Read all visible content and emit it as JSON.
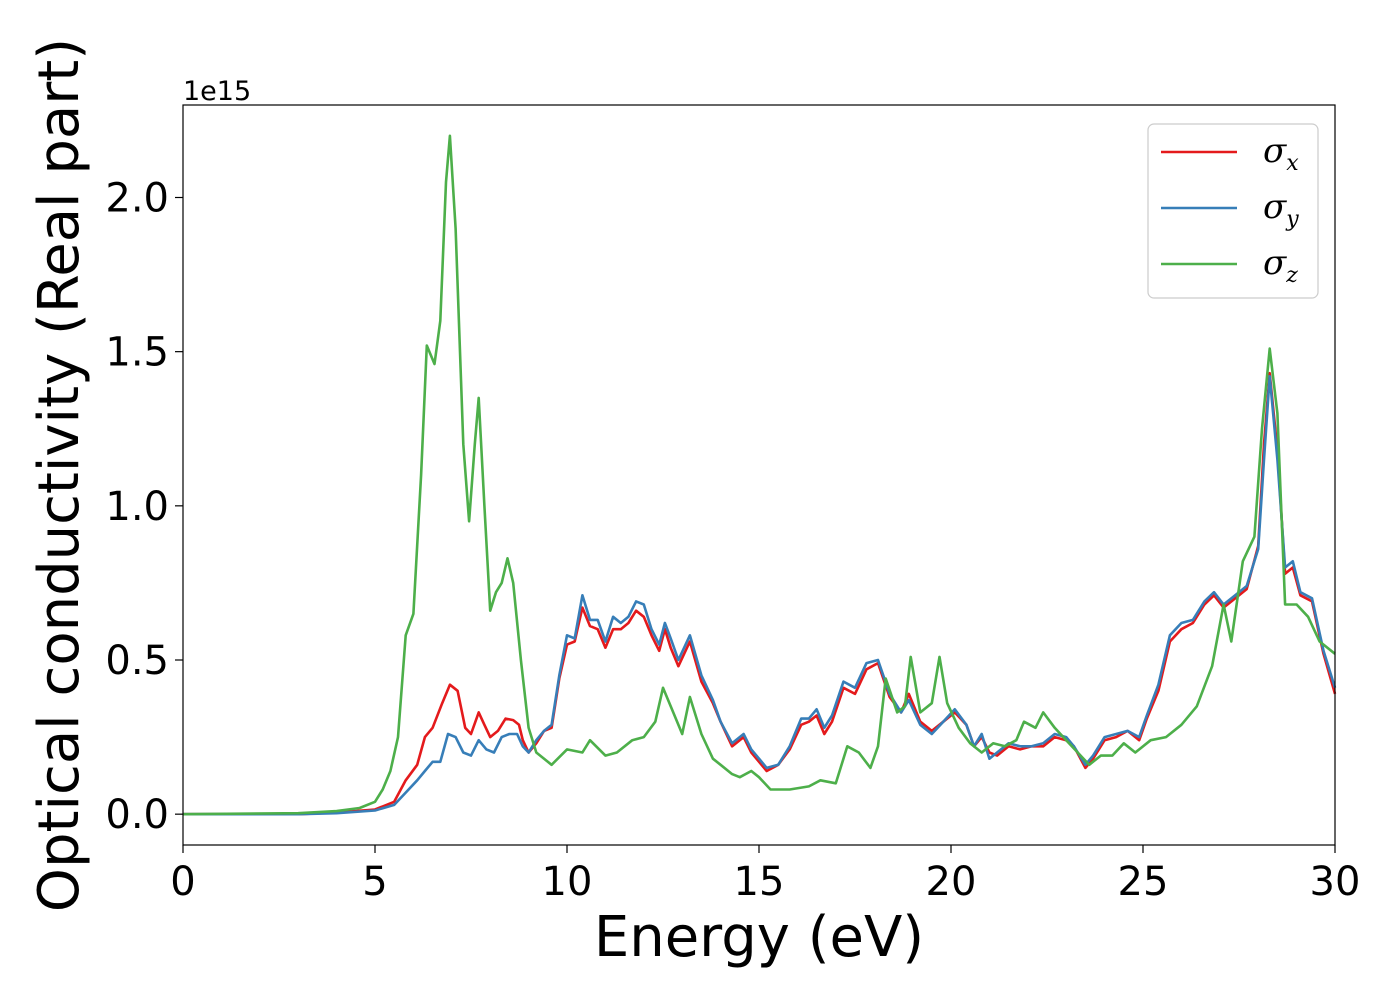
{
  "chart_data": {
    "type": "line",
    "xlabel": "Energy (eV)",
    "ylabel": "Optical conductivity (Real part)",
    "y_offset_text": "1e15",
    "xlim": [
      0,
      30
    ],
    "ylim": [
      -0.1,
      2.3
    ],
    "x_ticks": [
      0,
      5,
      10,
      15,
      20,
      25,
      30
    ],
    "x_tick_labels": [
      "0",
      "5",
      "10",
      "15",
      "20",
      "25",
      "30"
    ],
    "y_ticks": [
      0.0,
      0.5,
      1.0,
      1.5,
      2.0
    ],
    "y_tick_labels": [
      "0.0",
      "0.5",
      "1.0",
      "1.5",
      "2.0"
    ],
    "grid": false,
    "legend_position": "top-right",
    "series": [
      {
        "name": "σx",
        "symbol": "σ",
        "subscript": "x",
        "color": "#e41a1c",
        "points": [
          [
            0,
            0
          ],
          [
            3,
            0
          ],
          [
            4,
            0.005
          ],
          [
            5,
            0.015
          ],
          [
            5.5,
            0.04
          ],
          [
            5.8,
            0.11
          ],
          [
            6.1,
            0.16
          ],
          [
            6.3,
            0.25
          ],
          [
            6.5,
            0.28
          ],
          [
            6.75,
            0.36
          ],
          [
            6.95,
            0.42
          ],
          [
            7.15,
            0.4
          ],
          [
            7.35,
            0.28
          ],
          [
            7.5,
            0.26
          ],
          [
            7.7,
            0.33
          ],
          [
            7.85,
            0.29
          ],
          [
            8.0,
            0.25
          ],
          [
            8.2,
            0.27
          ],
          [
            8.4,
            0.31
          ],
          [
            8.6,
            0.305
          ],
          [
            8.75,
            0.29
          ],
          [
            8.85,
            0.24
          ],
          [
            9.0,
            0.2
          ],
          [
            9.2,
            0.23
          ],
          [
            9.4,
            0.27
          ],
          [
            9.6,
            0.28
          ],
          [
            9.8,
            0.44
          ],
          [
            10.0,
            0.55
          ],
          [
            10.2,
            0.56
          ],
          [
            10.4,
            0.67
          ],
          [
            10.6,
            0.61
          ],
          [
            10.8,
            0.6
          ],
          [
            11.0,
            0.54
          ],
          [
            11.2,
            0.6
          ],
          [
            11.4,
            0.6
          ],
          [
            11.6,
            0.62
          ],
          [
            11.8,
            0.66
          ],
          [
            12.0,
            0.64
          ],
          [
            12.2,
            0.58
          ],
          [
            12.4,
            0.53
          ],
          [
            12.55,
            0.6
          ],
          [
            12.7,
            0.54
          ],
          [
            12.9,
            0.48
          ],
          [
            13.2,
            0.56
          ],
          [
            13.5,
            0.43
          ],
          [
            13.8,
            0.36
          ],
          [
            14.0,
            0.3
          ],
          [
            14.3,
            0.22
          ],
          [
            14.6,
            0.25
          ],
          [
            14.8,
            0.2
          ],
          [
            15.2,
            0.14
          ],
          [
            15.5,
            0.16
          ],
          [
            15.8,
            0.21
          ],
          [
            16.1,
            0.29
          ],
          [
            16.3,
            0.3
          ],
          [
            16.5,
            0.32
          ],
          [
            16.7,
            0.26
          ],
          [
            16.9,
            0.3
          ],
          [
            17.2,
            0.41
          ],
          [
            17.5,
            0.39
          ],
          [
            17.8,
            0.47
          ],
          [
            18.1,
            0.49
          ],
          [
            18.4,
            0.38
          ],
          [
            18.7,
            0.33
          ],
          [
            18.9,
            0.39
          ],
          [
            19.2,
            0.3
          ],
          [
            19.5,
            0.27
          ],
          [
            19.8,
            0.3
          ],
          [
            20.1,
            0.33
          ],
          [
            20.4,
            0.29
          ],
          [
            20.6,
            0.22
          ],
          [
            20.8,
            0.25
          ],
          [
            21.0,
            0.2
          ],
          [
            21.2,
            0.19
          ],
          [
            21.5,
            0.22
          ],
          [
            21.8,
            0.21
          ],
          [
            22.1,
            0.22
          ],
          [
            22.4,
            0.22
          ],
          [
            22.7,
            0.25
          ],
          [
            23.0,
            0.24
          ],
          [
            23.2,
            0.22
          ],
          [
            23.5,
            0.15
          ],
          [
            23.7,
            0.18
          ],
          [
            24.0,
            0.24
          ],
          [
            24.3,
            0.25
          ],
          [
            24.6,
            0.27
          ],
          [
            24.9,
            0.24
          ],
          [
            25.1,
            0.31
          ],
          [
            25.4,
            0.4
          ],
          [
            25.7,
            0.56
          ],
          [
            26.0,
            0.6
          ],
          [
            26.3,
            0.62
          ],
          [
            26.6,
            0.68
          ],
          [
            26.85,
            0.71
          ],
          [
            27.1,
            0.67
          ],
          [
            27.4,
            0.7
          ],
          [
            27.7,
            0.73
          ],
          [
            28.0,
            0.87
          ],
          [
            28.15,
            1.2
          ],
          [
            28.3,
            1.43
          ],
          [
            28.5,
            1.18
          ],
          [
            28.7,
            0.78
          ],
          [
            28.9,
            0.8
          ],
          [
            29.1,
            0.71
          ],
          [
            29.4,
            0.69
          ],
          [
            29.7,
            0.52
          ],
          [
            30.0,
            0.39
          ]
        ]
      },
      {
        "name": "σy",
        "symbol": "σ",
        "subscript": "y",
        "color": "#377eb8",
        "points": [
          [
            0,
            0
          ],
          [
            3,
            0
          ],
          [
            4,
            0.003
          ],
          [
            5,
            0.012
          ],
          [
            5.5,
            0.03
          ],
          [
            5.8,
            0.07
          ],
          [
            6.1,
            0.11
          ],
          [
            6.3,
            0.14
          ],
          [
            6.5,
            0.17
          ],
          [
            6.7,
            0.17
          ],
          [
            6.9,
            0.26
          ],
          [
            7.1,
            0.25
          ],
          [
            7.3,
            0.2
          ],
          [
            7.5,
            0.19
          ],
          [
            7.7,
            0.24
          ],
          [
            7.9,
            0.21
          ],
          [
            8.1,
            0.2
          ],
          [
            8.3,
            0.25
          ],
          [
            8.5,
            0.26
          ],
          [
            8.7,
            0.26
          ],
          [
            8.85,
            0.22
          ],
          [
            9.0,
            0.2
          ],
          [
            9.2,
            0.24
          ],
          [
            9.4,
            0.27
          ],
          [
            9.6,
            0.29
          ],
          [
            9.8,
            0.45
          ],
          [
            10.0,
            0.58
          ],
          [
            10.2,
            0.57
          ],
          [
            10.4,
            0.71
          ],
          [
            10.6,
            0.63
          ],
          [
            10.8,
            0.63
          ],
          [
            11.0,
            0.56
          ],
          [
            11.2,
            0.64
          ],
          [
            11.4,
            0.62
          ],
          [
            11.6,
            0.64
          ],
          [
            11.8,
            0.69
          ],
          [
            12.0,
            0.68
          ],
          [
            12.2,
            0.6
          ],
          [
            12.4,
            0.55
          ],
          [
            12.55,
            0.62
          ],
          [
            12.7,
            0.57
          ],
          [
            12.9,
            0.5
          ],
          [
            13.2,
            0.58
          ],
          [
            13.5,
            0.45
          ],
          [
            13.8,
            0.37
          ],
          [
            14.0,
            0.3
          ],
          [
            14.3,
            0.23
          ],
          [
            14.6,
            0.26
          ],
          [
            14.8,
            0.21
          ],
          [
            15.2,
            0.15
          ],
          [
            15.5,
            0.16
          ],
          [
            15.8,
            0.22
          ],
          [
            16.1,
            0.31
          ],
          [
            16.3,
            0.31
          ],
          [
            16.5,
            0.34
          ],
          [
            16.7,
            0.28
          ],
          [
            16.9,
            0.32
          ],
          [
            17.2,
            0.43
          ],
          [
            17.5,
            0.41
          ],
          [
            17.8,
            0.49
          ],
          [
            18.1,
            0.5
          ],
          [
            18.4,
            0.39
          ],
          [
            18.7,
            0.33
          ],
          [
            18.9,
            0.37
          ],
          [
            19.2,
            0.29
          ],
          [
            19.5,
            0.26
          ],
          [
            19.8,
            0.3
          ],
          [
            20.1,
            0.34
          ],
          [
            20.4,
            0.29
          ],
          [
            20.6,
            0.22
          ],
          [
            20.8,
            0.26
          ],
          [
            21.0,
            0.18
          ],
          [
            21.2,
            0.2
          ],
          [
            21.5,
            0.23
          ],
          [
            21.8,
            0.22
          ],
          [
            22.1,
            0.22
          ],
          [
            22.4,
            0.23
          ],
          [
            22.7,
            0.26
          ],
          [
            23.0,
            0.25
          ],
          [
            23.2,
            0.22
          ],
          [
            23.5,
            0.16
          ],
          [
            23.7,
            0.19
          ],
          [
            24.0,
            0.25
          ],
          [
            24.3,
            0.26
          ],
          [
            24.6,
            0.27
          ],
          [
            24.9,
            0.25
          ],
          [
            25.1,
            0.32
          ],
          [
            25.4,
            0.42
          ],
          [
            25.7,
            0.58
          ],
          [
            26.0,
            0.62
          ],
          [
            26.3,
            0.63
          ],
          [
            26.6,
            0.69
          ],
          [
            26.85,
            0.72
          ],
          [
            27.1,
            0.68
          ],
          [
            27.4,
            0.71
          ],
          [
            27.7,
            0.74
          ],
          [
            28.0,
            0.86
          ],
          [
            28.15,
            1.15
          ],
          [
            28.3,
            1.42
          ],
          [
            28.5,
            1.15
          ],
          [
            28.7,
            0.8
          ],
          [
            28.9,
            0.82
          ],
          [
            29.1,
            0.72
          ],
          [
            29.4,
            0.7
          ],
          [
            29.7,
            0.53
          ],
          [
            30.0,
            0.41
          ]
        ]
      },
      {
        "name": "σz",
        "symbol": "σ",
        "subscript": "z",
        "color": "#4daf4a",
        "points": [
          [
            0,
            0
          ],
          [
            3,
            0.003
          ],
          [
            4,
            0.01
          ],
          [
            4.6,
            0.02
          ],
          [
            5.0,
            0.04
          ],
          [
            5.2,
            0.08
          ],
          [
            5.4,
            0.14
          ],
          [
            5.6,
            0.25
          ],
          [
            5.8,
            0.58
          ],
          [
            6.0,
            0.65
          ],
          [
            6.2,
            1.1
          ],
          [
            6.35,
            1.52
          ],
          [
            6.55,
            1.46
          ],
          [
            6.7,
            1.6
          ],
          [
            6.85,
            2.05
          ],
          [
            6.95,
            2.2
          ],
          [
            7.1,
            1.9
          ],
          [
            7.3,
            1.2
          ],
          [
            7.45,
            0.95
          ],
          [
            7.6,
            1.2
          ],
          [
            7.7,
            1.35
          ],
          [
            7.85,
            1.0
          ],
          [
            8.0,
            0.66
          ],
          [
            8.15,
            0.72
          ],
          [
            8.3,
            0.75
          ],
          [
            8.45,
            0.83
          ],
          [
            8.6,
            0.75
          ],
          [
            8.8,
            0.5
          ],
          [
            9.0,
            0.28
          ],
          [
            9.2,
            0.2
          ],
          [
            9.6,
            0.16
          ],
          [
            10.0,
            0.21
          ],
          [
            10.4,
            0.2
          ],
          [
            10.6,
            0.24
          ],
          [
            11.0,
            0.19
          ],
          [
            11.3,
            0.2
          ],
          [
            11.7,
            0.24
          ],
          [
            12.0,
            0.25
          ],
          [
            12.3,
            0.3
          ],
          [
            12.5,
            0.41
          ],
          [
            12.7,
            0.35
          ],
          [
            13.0,
            0.26
          ],
          [
            13.2,
            0.38
          ],
          [
            13.5,
            0.26
          ],
          [
            13.8,
            0.18
          ],
          [
            14.0,
            0.16
          ],
          [
            14.3,
            0.13
          ],
          [
            14.5,
            0.12
          ],
          [
            14.8,
            0.14
          ],
          [
            15.0,
            0.12
          ],
          [
            15.3,
            0.08
          ],
          [
            15.8,
            0.08
          ],
          [
            16.3,
            0.09
          ],
          [
            16.6,
            0.11
          ],
          [
            17.0,
            0.1
          ],
          [
            17.3,
            0.22
          ],
          [
            17.6,
            0.2
          ],
          [
            17.9,
            0.15
          ],
          [
            18.1,
            0.22
          ],
          [
            18.3,
            0.44
          ],
          [
            18.6,
            0.33
          ],
          [
            18.8,
            0.35
          ],
          [
            18.95,
            0.51
          ],
          [
            19.2,
            0.33
          ],
          [
            19.5,
            0.36
          ],
          [
            19.7,
            0.51
          ],
          [
            19.9,
            0.36
          ],
          [
            20.2,
            0.28
          ],
          [
            20.5,
            0.23
          ],
          [
            20.8,
            0.2
          ],
          [
            21.1,
            0.23
          ],
          [
            21.4,
            0.22
          ],
          [
            21.7,
            0.24
          ],
          [
            21.9,
            0.3
          ],
          [
            22.2,
            0.28
          ],
          [
            22.4,
            0.33
          ],
          [
            22.7,
            0.28
          ],
          [
            23.0,
            0.24
          ],
          [
            23.3,
            0.2
          ],
          [
            23.6,
            0.16
          ],
          [
            23.9,
            0.19
          ],
          [
            24.2,
            0.19
          ],
          [
            24.5,
            0.23
          ],
          [
            24.8,
            0.2
          ],
          [
            25.2,
            0.24
          ],
          [
            25.6,
            0.25
          ],
          [
            26.0,
            0.29
          ],
          [
            26.4,
            0.35
          ],
          [
            26.8,
            0.48
          ],
          [
            27.1,
            0.68
          ],
          [
            27.3,
            0.56
          ],
          [
            27.6,
            0.82
          ],
          [
            27.9,
            0.9
          ],
          [
            28.1,
            1.25
          ],
          [
            28.3,
            1.51
          ],
          [
            28.5,
            1.3
          ],
          [
            28.7,
            0.68
          ],
          [
            29.0,
            0.68
          ],
          [
            29.3,
            0.64
          ],
          [
            29.6,
            0.56
          ],
          [
            30.0,
            0.52
          ]
        ]
      }
    ]
  }
}
